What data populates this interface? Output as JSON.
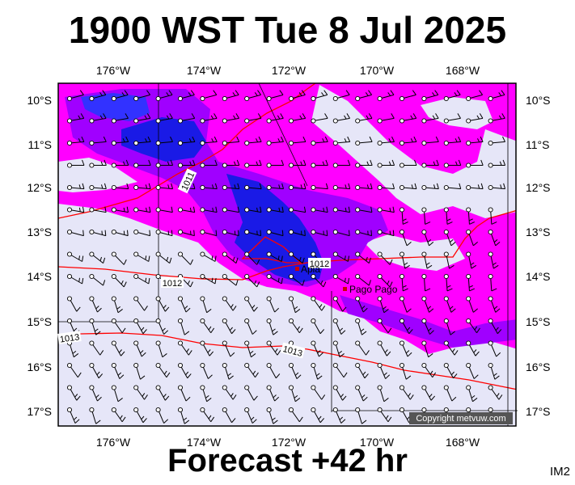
{
  "title": "1900 WST Tue 8 Jul 2025",
  "subtitle": "Forecast +42 hr",
  "badge": "IM2",
  "copyright": "Copyright metvuw.com",
  "lon_labels": [
    "176°W",
    "174°W",
    "172°W",
    "170°W",
    "168°W"
  ],
  "lat_labels": [
    "10°S",
    "11°S",
    "12°S",
    "13°S",
    "14°S",
    "15°S",
    "16°S",
    "17°S"
  ],
  "places": [
    {
      "name": "Apia"
    },
    {
      "name": "Pago Pago"
    }
  ],
  "isobar_labels": [
    "1011",
    "1012",
    "1012",
    "1013",
    "1013"
  ],
  "colors": {
    "background": "#e6e6f8",
    "rain_light": "#ff00ff",
    "rain_medium": "#a000ff",
    "rain_heavy": "#1a1ae6",
    "isobar": "#ff0000",
    "wind_barb": "#000000"
  }
}
